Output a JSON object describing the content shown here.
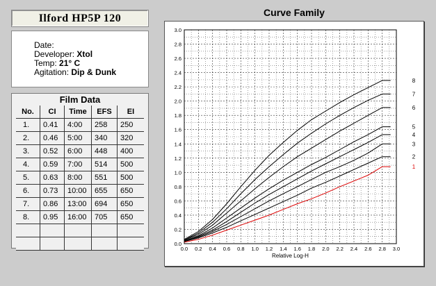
{
  "header": {
    "title": "Ilford   HP5P  120"
  },
  "info": {
    "date_label": "Date:",
    "date_value": "",
    "developer_label": "Developer:",
    "developer_value": "Xtol",
    "temp_label": "Temp:",
    "temp_value": "21° C",
    "agitation_label": "Agitation:",
    "agitation_value": "Dip & Dunk"
  },
  "film_data": {
    "title": "Film Data",
    "columns": [
      "No.",
      "CI",
      "Time",
      "EFS",
      "EI"
    ],
    "rows": [
      [
        "1.",
        "0.41",
        "4:00",
        "258",
        "250"
      ],
      [
        "2.",
        "0.46",
        "5:00",
        "340",
        "320"
      ],
      [
        "3.",
        "0.52",
        "6:00",
        "448",
        "400"
      ],
      [
        "4.",
        "0.59",
        "7:00",
        "514",
        "500"
      ],
      [
        "5.",
        "0.63",
        "8:00",
        "551",
        "500"
      ],
      [
        "6.",
        "0.73",
        "10:00",
        "655",
        "650"
      ],
      [
        "7.",
        "0.86",
        "13:00",
        "694",
        "650"
      ],
      [
        "8.",
        "0.95",
        "16:00",
        "705",
        "650"
      ],
      [
        "",
        "",
        "",
        "",
        ""
      ],
      [
        "",
        "",
        "",
        "",
        ""
      ]
    ]
  },
  "chart_data": {
    "type": "line",
    "title": "Curve Family",
    "xlabel": "Relative Log-H",
    "ylabel": "",
    "xlim": [
      0,
      3.0
    ],
    "ylim": [
      0,
      3.0
    ],
    "x_ticks": [
      "0.0",
      "0.2",
      "0.4",
      "0.6",
      "0.8",
      "1.0",
      "1.2",
      "1.4",
      "1.6",
      "1.8",
      "2.0",
      "2.2",
      "2.4",
      "2.6",
      "2.8",
      "3.0"
    ],
    "y_ticks": [
      "0.0",
      "0.2",
      "0.4",
      "0.6",
      "0.8",
      "1.0",
      "1.2",
      "1.4",
      "1.6",
      "1.8",
      "2.0",
      "2.2",
      "2.4",
      "2.6",
      "2.8",
      "3.0"
    ],
    "grid": true,
    "colors": {
      "curve": "#000000",
      "highlight": "#dd0000",
      "grid": "#000000"
    },
    "x": [
      0.0,
      0.2,
      0.4,
      0.6,
      0.8,
      1.0,
      1.2,
      1.4,
      1.6,
      1.8,
      2.0,
      2.2,
      2.4,
      2.6,
      2.8
    ],
    "series": [
      {
        "name": "1",
        "highlight": true,
        "values": [
          0.02,
          0.06,
          0.12,
          0.19,
          0.26,
          0.33,
          0.4,
          0.48,
          0.56,
          0.63,
          0.71,
          0.8,
          0.88,
          0.96,
          1.08
        ]
      },
      {
        "name": "2",
        "highlight": false,
        "values": [
          0.03,
          0.08,
          0.15,
          0.23,
          0.32,
          0.41,
          0.5,
          0.59,
          0.68,
          0.78,
          0.86,
          0.95,
          1.04,
          1.13,
          1.22
        ]
      },
      {
        "name": "3",
        "highlight": false,
        "values": [
          0.03,
          0.09,
          0.17,
          0.27,
          0.38,
          0.49,
          0.6,
          0.7,
          0.8,
          0.9,
          1.0,
          1.08,
          1.17,
          1.27,
          1.4
        ]
      },
      {
        "name": "4",
        "highlight": false,
        "values": [
          0.04,
          0.1,
          0.19,
          0.31,
          0.44,
          0.57,
          0.69,
          0.8,
          0.91,
          1.02,
          1.12,
          1.22,
          1.32,
          1.42,
          1.53
        ]
      },
      {
        "name": "5",
        "highlight": false,
        "values": [
          0.04,
          0.11,
          0.22,
          0.36,
          0.5,
          0.64,
          0.77,
          0.89,
          1.0,
          1.11,
          1.21,
          1.32,
          1.43,
          1.53,
          1.64
        ]
      },
      {
        "name": "6",
        "highlight": false,
        "values": [
          0.05,
          0.13,
          0.26,
          0.43,
          0.6,
          0.77,
          0.93,
          1.08,
          1.22,
          1.34,
          1.46,
          1.58,
          1.69,
          1.8,
          1.91
        ]
      },
      {
        "name": "7",
        "highlight": false,
        "values": [
          0.05,
          0.15,
          0.3,
          0.49,
          0.7,
          0.9,
          1.08,
          1.25,
          1.41,
          1.55,
          1.68,
          1.8,
          1.91,
          2.01,
          2.1
        ]
      },
      {
        "name": "8",
        "highlight": false,
        "values": [
          0.06,
          0.17,
          0.34,
          0.56,
          0.8,
          1.03,
          1.24,
          1.42,
          1.59,
          1.74,
          1.86,
          1.98,
          2.09,
          2.19,
          2.29
        ]
      }
    ]
  }
}
